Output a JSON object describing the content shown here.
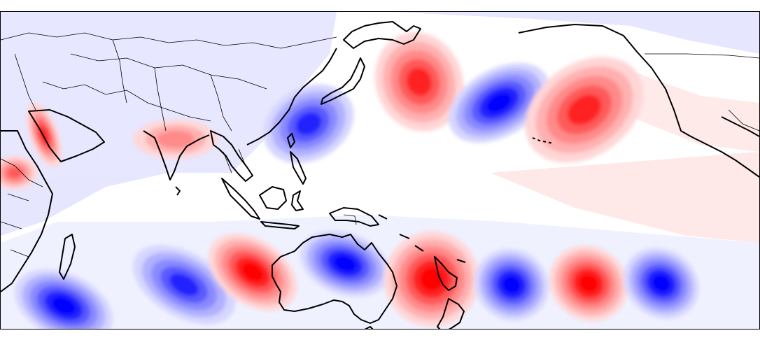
{
  "map": {
    "type": "anomaly-field",
    "colormap": {
      "positive": "#ff0000",
      "negative": "#0000ff",
      "neutral": "#ffffff",
      "levels": [
        "#ffd6d6",
        "#ffb0b0",
        "#ff8a8a",
        "#ff5a5a",
        "#ff2020",
        "#ff0000"
      ],
      "levels_negative": [
        "#d6d6ff",
        "#b0b0ff",
        "#8a8aff",
        "#5a5aff",
        "#2020ff",
        "#0000ff"
      ]
    },
    "coastline_color": "#000000",
    "border_color": "#000000",
    "anomalies": [
      {
        "id": "nw-pacific-high",
        "sign": "positive",
        "strength": 0.85
      },
      {
        "id": "japan-low",
        "sign": "negative",
        "strength": 0.9
      },
      {
        "id": "central-pacific-low",
        "sign": "negative",
        "strength": 0.95
      },
      {
        "id": "ne-pacific-high",
        "sign": "positive",
        "strength": 0.75
      },
      {
        "id": "sw-indian-low",
        "sign": "negative",
        "strength": 1.0
      },
      {
        "id": "s-indian-low",
        "sign": "negative",
        "strength": 0.85
      },
      {
        "id": "w-australia-high",
        "sign": "positive",
        "strength": 0.95
      },
      {
        "id": "australia-low",
        "sign": "negative",
        "strength": 1.0
      },
      {
        "id": "tasman-high",
        "sign": "positive",
        "strength": 1.0
      },
      {
        "id": "s-pacific-low",
        "sign": "negative",
        "strength": 1.0
      },
      {
        "id": "s-pacific-high",
        "sign": "positive",
        "strength": 1.0
      },
      {
        "id": "se-pacific-low",
        "sign": "negative",
        "strength": 0.95
      },
      {
        "id": "red-sea-high",
        "sign": "positive",
        "strength": 0.9
      },
      {
        "id": "india-high",
        "sign": "positive",
        "strength": 0.45
      },
      {
        "id": "e-africa-high",
        "sign": "positive",
        "strength": 0.7
      }
    ]
  }
}
